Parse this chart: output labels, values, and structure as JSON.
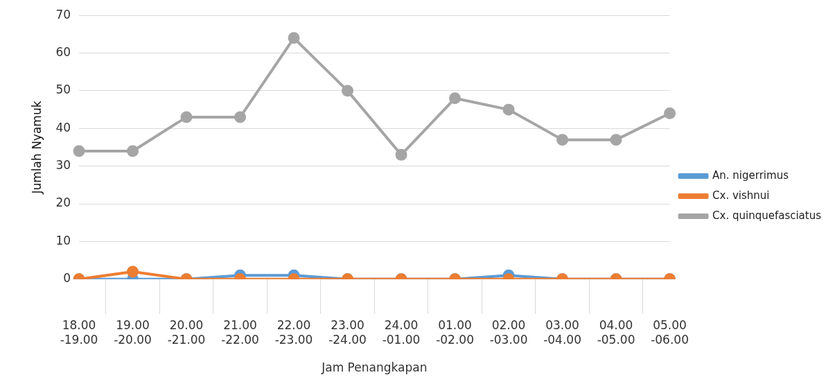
{
  "chart_data": {
    "type": "line",
    "xlabel": "Jam Penangkapan",
    "ylabel": "Jumlah Nyamuk",
    "categories": [
      "18.00 -19.00",
      "19.00 -20.00",
      "20.00 -21.00",
      "21.00 -22.00",
      "22.00 -23.00",
      "23.00 -24.00",
      "24.00 -01.00",
      "01.00 -02.00",
      "02.00 -03.00",
      "03.00 -04.00",
      "04.00 -05.00",
      "05.00 -06.00"
    ],
    "series": [
      {
        "name": "An. nigerrimus",
        "color": "#5b9bd5",
        "values": [
          0,
          0,
          0,
          1,
          1,
          0,
          0,
          0,
          1,
          0,
          0,
          0
        ]
      },
      {
        "name": "Cx. vishnui",
        "color": "#ed7d31",
        "values": [
          0,
          2,
          0,
          0,
          0,
          0,
          0,
          0,
          0,
          0,
          0,
          0
        ]
      },
      {
        "name": "Cx. quinquefasciatus",
        "color": "#a5a5a5",
        "values": [
          34,
          34,
          43,
          43,
          64,
          50,
          33,
          48,
          45,
          37,
          37,
          44
        ]
      }
    ],
    "ylim": [
      0,
      70
    ],
    "yticks": [
      0,
      10,
      20,
      30,
      40,
      50,
      60,
      70
    ],
    "grid": "y",
    "legend": "right",
    "marker": "circle",
    "line_style": "solid"
  }
}
